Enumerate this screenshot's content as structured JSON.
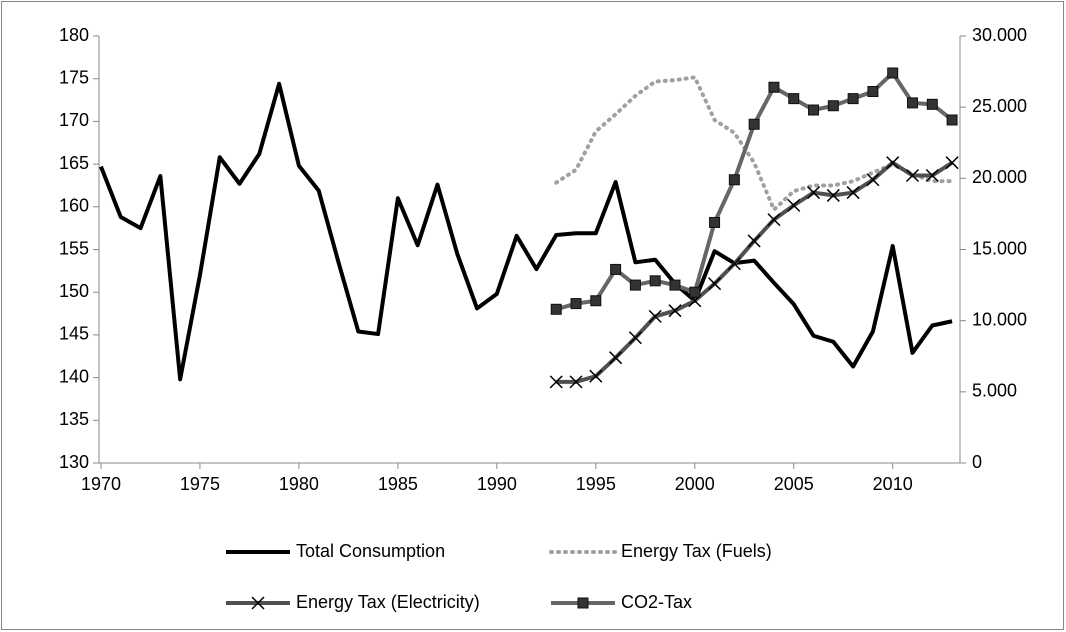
{
  "chart_data": {
    "type": "line",
    "x": [
      1970,
      1971,
      1972,
      1973,
      1974,
      1975,
      1976,
      1977,
      1978,
      1979,
      1980,
      1981,
      1982,
      1983,
      1984,
      1985,
      1986,
      1987,
      1988,
      1989,
      1990,
      1991,
      1992,
      1993,
      1994,
      1995,
      1996,
      1997,
      1998,
      1999,
      2000,
      2001,
      2002,
      2003,
      2004,
      2005,
      2006,
      2007,
      2008,
      2009,
      2010,
      2011,
      2012,
      2013
    ],
    "xlim": [
      1969.9,
      2013.4
    ],
    "xticks": [
      1970,
      1975,
      1980,
      1985,
      1990,
      1995,
      2000,
      2005,
      2010
    ],
    "ylim": [
      130,
      180
    ],
    "yticks": [
      130,
      135,
      140,
      145,
      150,
      155,
      160,
      165,
      170,
      175,
      180
    ],
    "y2lim": [
      0,
      30000
    ],
    "y2ticks": [
      0,
      {
        "value": 5000,
        "label": "5.000"
      },
      {
        "value": 10000,
        "label": "10.000"
      },
      {
        "value": 15000,
        "label": "15.000"
      },
      {
        "value": 20000,
        "label": "20.000"
      },
      {
        "value": 25000,
        "label": "25.000"
      },
      {
        "value": 30000,
        "label": "30.000"
      }
    ],
    "grid": false,
    "series": [
      {
        "name": "Total Consumption",
        "color": "#000000",
        "style": "solid",
        "marker": "none",
        "values": [
          164.7,
          158.8,
          157.5,
          163.6,
          139.8,
          152,
          165.8,
          162.7,
          166.2,
          174.4,
          164.8,
          161.9,
          153.5,
          145.4,
          145.1,
          161,
          155.5,
          162.6,
          154.5,
          148.1,
          149.8,
          156.6,
          152.7,
          156.7,
          156.9,
          156.9,
          162.9,
          153.5,
          153.8,
          151,
          149,
          154.8,
          153.4,
          153.7,
          151.1,
          148.6,
          144.9,
          144.2,
          141.3,
          145.4,
          155.4,
          142.9,
          146.1,
          146.6
        ]
      },
      {
        "name": "Energy Tax (Fuels)",
        "color": "#a0a0a0",
        "style": "dotted",
        "marker": "none",
        "axis": "y2",
        "values": [
          null,
          null,
          null,
          null,
          null,
          null,
          null,
          null,
          null,
          null,
          null,
          null,
          null,
          null,
          null,
          null,
          null,
          null,
          null,
          null,
          null,
          null,
          null,
          19700,
          20600,
          23300,
          24500,
          25800,
          26800,
          26900,
          27100,
          24100,
          23200,
          21100,
          17800,
          19100,
          19500,
          19500,
          19800,
          20400,
          21000,
          20300,
          19800,
          19800
        ]
      },
      {
        "name": "Energy Tax (Electricity)",
        "color": "#505050",
        "style": "solid",
        "marker": "x",
        "axis": "y2",
        "values": [
          null,
          null,
          null,
          null,
          null,
          null,
          null,
          null,
          null,
          null,
          null,
          null,
          null,
          null,
          null,
          null,
          null,
          null,
          null,
          null,
          null,
          null,
          null,
          5700,
          5700,
          6100,
          7400,
          8800,
          10300,
          10700,
          11400,
          12600,
          14000,
          15600,
          17100,
          18100,
          19000,
          18800,
          19000,
          19900,
          21100,
          20200,
          20200,
          21100
        ]
      },
      {
        "name": "CO2-Tax",
        "color": "#666666",
        "style": "solid",
        "marker": "square",
        "axis": "y2",
        "values": [
          null,
          null,
          null,
          null,
          null,
          null,
          null,
          null,
          null,
          null,
          null,
          null,
          null,
          null,
          null,
          null,
          null,
          null,
          null,
          null,
          null,
          null,
          null,
          10800,
          11200,
          11400,
          13600,
          12500,
          12800,
          12500,
          12000,
          16900,
          19900,
          23800,
          26400,
          25600,
          24800,
          25100,
          25600,
          26100,
          27400,
          25300,
          25200,
          24100
        ]
      }
    ]
  }
}
